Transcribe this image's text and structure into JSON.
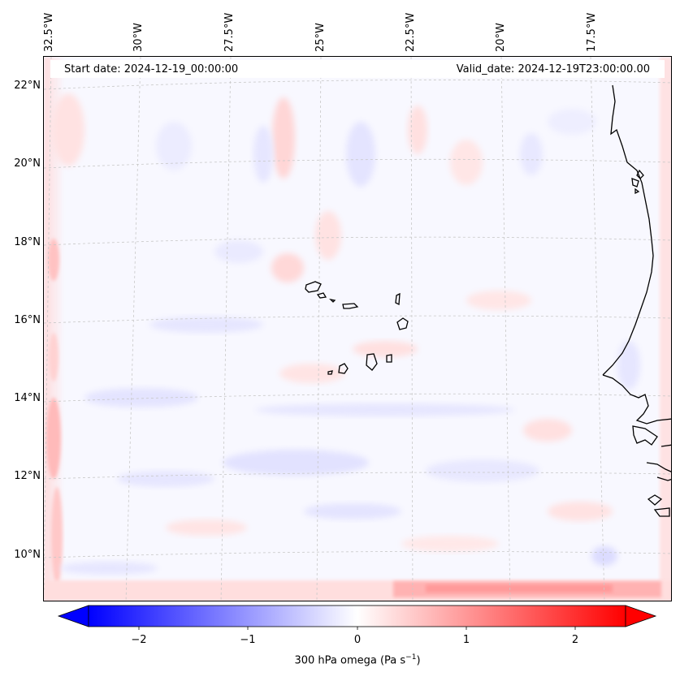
{
  "map": {
    "start_date": "Start date: 2024-12-19_00:00:00",
    "valid_date": "Valid_date: 2024-12-19T23:00:00.00",
    "longitude_labels": [
      "32.5°W",
      "30°W",
      "27.5°W",
      "25°W",
      "22.5°W",
      "20°W",
      "17.5°W"
    ],
    "latitude_labels": [
      "22°N",
      "20°N",
      "18°N",
      "16°N",
      "14°N",
      "12°N",
      "10°N"
    ],
    "field": "300 hPa omega",
    "colors": {
      "coastline": "#000000",
      "grid": "#c8c8c8",
      "background_field": "#f8f8ff",
      "positive": "#ff0000",
      "negative": "#0000ff"
    }
  },
  "colorbar": {
    "ticks": [
      "−2",
      "−1",
      "0",
      "1",
      "2"
    ],
    "tick_values": [
      -2,
      -1,
      0,
      1,
      2
    ],
    "range": [
      -2.6,
      2.6
    ],
    "label": "300 hPa omega (Pa s",
    "label_exponent": "−1",
    "label_suffix": ")",
    "colormap": "bwr"
  }
}
